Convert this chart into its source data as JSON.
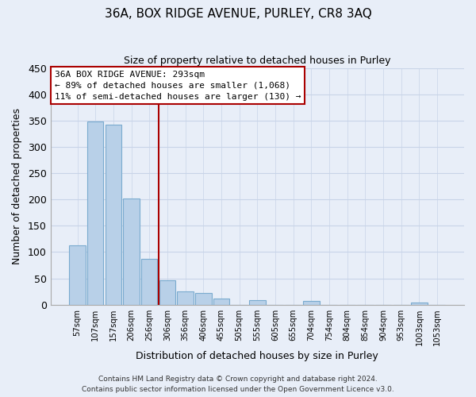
{
  "title": "36A, BOX RIDGE AVENUE, PURLEY, CR8 3AQ",
  "subtitle": "Size of property relative to detached houses in Purley",
  "xlabel": "Distribution of detached houses by size in Purley",
  "ylabel": "Number of detached properties",
  "bar_labels": [
    "57sqm",
    "107sqm",
    "157sqm",
    "206sqm",
    "256sqm",
    "306sqm",
    "356sqm",
    "406sqm",
    "455sqm",
    "505sqm",
    "555sqm",
    "605sqm",
    "655sqm",
    "704sqm",
    "754sqm",
    "804sqm",
    "854sqm",
    "904sqm",
    "953sqm",
    "1003sqm",
    "1053sqm"
  ],
  "bar_values": [
    112,
    348,
    342,
    202,
    87,
    47,
    25,
    22,
    12,
    0,
    8,
    0,
    0,
    7,
    0,
    0,
    0,
    0,
    0,
    4,
    0
  ],
  "bar_color": "#b8d0e8",
  "bar_edge_color": "#7aabcf",
  "marker_x_label": "306sqm",
  "marker_color": "#aa0000",
  "annotation_title": "36A BOX RIDGE AVENUE: 293sqm",
  "annotation_line1": "← 89% of detached houses are smaller (1,068)",
  "annotation_line2": "11% of semi-detached houses are larger (130) →",
  "ylim": [
    0,
    450
  ],
  "yticks": [
    0,
    50,
    100,
    150,
    200,
    250,
    300,
    350,
    400,
    450
  ],
  "footer_line1": "Contains HM Land Registry data © Crown copyright and database right 2024.",
  "footer_line2": "Contains public sector information licensed under the Open Government Licence v3.0.",
  "bg_color": "#e8eef8",
  "plot_bg_color": "#e8eef8",
  "grid_color": "#c8d4e8"
}
